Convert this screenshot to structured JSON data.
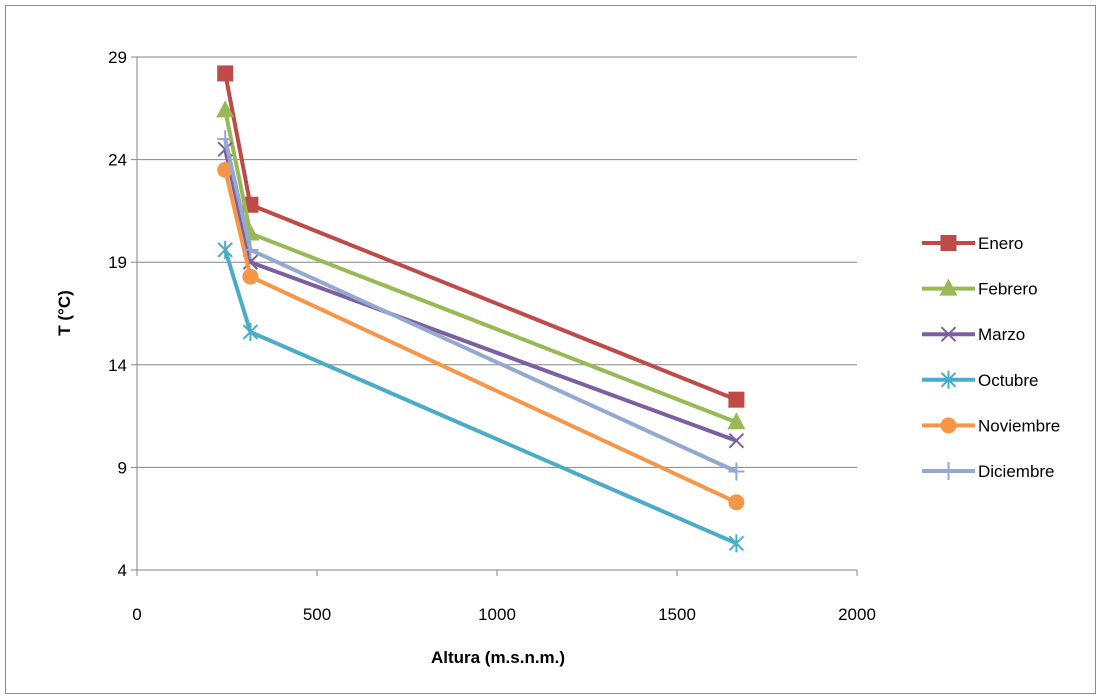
{
  "chart_data": {
    "type": "line",
    "xlabel": "Altura (m.s.n.m.)",
    "ylabel": "T (°C)",
    "xlim": [
      0,
      2000
    ],
    "ylim": [
      4,
      29
    ],
    "x_ticks": [
      "0",
      "500",
      "1000",
      "1500",
      "2000"
    ],
    "y_ticks": [
      "4",
      "9",
      "14",
      "19",
      "24",
      "29"
    ],
    "x_tick_values": [
      0,
      500,
      1000,
      1500,
      2000
    ],
    "y_tick_values": [
      4,
      9,
      14,
      19,
      24,
      29
    ],
    "grid": "horizontal",
    "legend_position": "right",
    "x": [
      245,
      315,
      1665
    ],
    "series": [
      {
        "name": "Enero",
        "values": [
          28.2,
          21.8,
          12.3
        ],
        "color": "#be4b48",
        "marker": "square"
      },
      {
        "name": "Febrero",
        "values": [
          26.4,
          20.4,
          11.2
        ],
        "color": "#98b954",
        "marker": "triangle"
      },
      {
        "name": "Marzo",
        "values": [
          24.5,
          19.0,
          10.3
        ],
        "color": "#7d5fa0",
        "marker": "x"
      },
      {
        "name": "Octubre",
        "values": [
          19.6,
          15.6,
          5.3
        ],
        "color": "#4aacc5",
        "marker": "star"
      },
      {
        "name": "Noviembre",
        "values": [
          23.5,
          18.3,
          7.3
        ],
        "color": "#f79646",
        "marker": "circle"
      },
      {
        "name": "Diciembre",
        "values": [
          25.0,
          19.6,
          8.8
        ],
        "color": "#93a9cf",
        "marker": "plus"
      }
    ]
  }
}
